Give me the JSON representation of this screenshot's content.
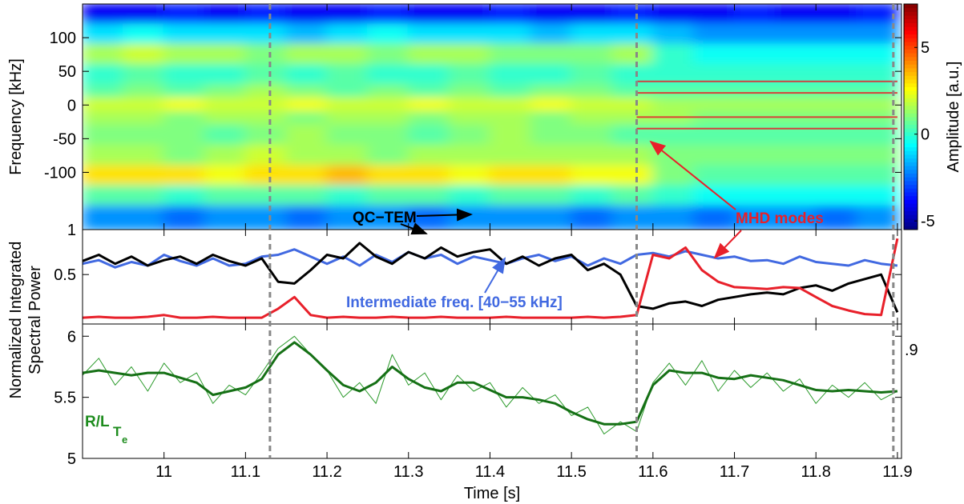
{
  "chart_data": [
    {
      "type": "heatmap",
      "ylabel": "Frequency [kHz]",
      "colorbar_label": "Amplitude [a.u.]",
      "xlim": [
        10.9,
        11.905
      ],
      "ylim": [
        -185,
        150
      ],
      "yticks": [
        -100,
        -50,
        0,
        50,
        100
      ],
      "zlim": [
        -5.5,
        7.5
      ],
      "zticks": [
        -5,
        0,
        5
      ],
      "xbins": [
        10.9,
        10.95,
        11.0,
        11.05,
        11.1,
        11.15,
        11.2,
        11.25,
        11.3,
        11.35,
        11.4,
        11.45,
        11.5,
        11.55,
        11.6,
        11.65,
        11.7,
        11.75,
        11.8,
        11.85,
        11.9
      ],
      "ybins": [
        150,
        120,
        90,
        60,
        30,
        10,
        -10,
        -30,
        -60,
        -90,
        -120,
        -150,
        -185
      ],
      "z": [
        [
          -4,
          -4,
          -3.5,
          -4,
          -3.5,
          -4,
          -4,
          -3.5,
          -4,
          -4,
          -3.5,
          -4,
          -4,
          -3.5,
          -4,
          -4,
          -3.5,
          -4,
          -4,
          -3.5
        ],
        [
          -1,
          -0.5,
          -1,
          -1,
          -1,
          -1.5,
          -1,
          -0.5,
          -1,
          -1,
          -1,
          -1.5,
          -1,
          -1,
          -1.5,
          -2,
          -2,
          -2,
          -2,
          -2
        ],
        [
          1.5,
          2,
          1.5,
          1.5,
          1,
          1.5,
          1.5,
          1,
          1.5,
          1.5,
          1,
          1,
          1,
          1.5,
          0,
          -0.5,
          -0.5,
          -0.5,
          -0.5,
          -0.5
        ],
        [
          0,
          0.5,
          0,
          0,
          0.5,
          0,
          0.5,
          0,
          0,
          0.5,
          0,
          0,
          0.5,
          0,
          0,
          0,
          0,
          0,
          0,
          0
        ],
        [
          0.5,
          1,
          0.5,
          1,
          1.5,
          1,
          0.5,
          1,
          0.5,
          1,
          0.5,
          1,
          1,
          0.5,
          0.5,
          0.5,
          0.5,
          0.5,
          0.5,
          0.5
        ],
        [
          2,
          2,
          2.5,
          2,
          2,
          2.5,
          2,
          2,
          2.5,
          2,
          2,
          2.5,
          2,
          2,
          1.5,
          1.5,
          1.5,
          1.5,
          1.5,
          1.5
        ],
        [
          1.5,
          1.5,
          1,
          1.5,
          1.5,
          1,
          1.5,
          1.5,
          1,
          1.5,
          1.5,
          1,
          1.5,
          1.5,
          1.5,
          1,
          1,
          1,
          1,
          1
        ],
        [
          1,
          1,
          1,
          0.5,
          1,
          1.5,
          1,
          1,
          0.5,
          1,
          1.5,
          1,
          1,
          0.5,
          0.5,
          0.5,
          0.5,
          0.5,
          0.5,
          0.5
        ],
        [
          1.5,
          1.5,
          1,
          1.5,
          2,
          1.5,
          1.5,
          1,
          1.5,
          1.5,
          1.5,
          1.5,
          1.5,
          1.5,
          1,
          1,
          1,
          1,
          1,
          1
        ],
        [
          3,
          3,
          3,
          2.5,
          3,
          3,
          3.5,
          3,
          3,
          2.5,
          3,
          3,
          2.5,
          2.5,
          1,
          0.5,
          0.5,
          0.5,
          0.5,
          0.5
        ],
        [
          0.5,
          0.5,
          0,
          0.5,
          0.5,
          0.5,
          0,
          0.5,
          0.5,
          0,
          0.5,
          0.5,
          0,
          0.5,
          0,
          -0.5,
          -0.5,
          -0.5,
          -0.5,
          -0.5
        ],
        [
          -2,
          -2,
          -2.5,
          -2,
          -2,
          -2.5,
          -2,
          -2,
          -2.5,
          -2,
          -2,
          -2,
          -2.5,
          -2,
          -2,
          -2.5,
          -2,
          -2,
          -2.5,
          -2
        ]
      ],
      "mode_freqs": [
        35,
        18,
        -18,
        -35
      ],
      "mode_start": 11.58,
      "mode_end": 11.9,
      "mode_color": "#e8202a"
    },
    {
      "type": "line",
      "ylabel": [
        "Normalized Integrated",
        "Spectral Power"
      ],
      "xlim": [
        10.9,
        11.905
      ],
      "ylim": [
        -0.05,
        1
      ],
      "yticks": [
        0.5,
        1
      ],
      "x": [
        10.9,
        10.92,
        10.94,
        10.96,
        10.98,
        11.0,
        11.02,
        11.04,
        11.06,
        11.08,
        11.1,
        11.12,
        11.14,
        11.16,
        11.18,
        11.2,
        11.22,
        11.24,
        11.26,
        11.28,
        11.3,
        11.32,
        11.34,
        11.36,
        11.38,
        11.4,
        11.42,
        11.44,
        11.46,
        11.48,
        11.5,
        11.52,
        11.54,
        11.56,
        11.58,
        11.6,
        11.62,
        11.64,
        11.66,
        11.68,
        11.7,
        11.72,
        11.74,
        11.76,
        11.78,
        11.8,
        11.82,
        11.84,
        11.86,
        11.88,
        11.9
      ],
      "series": [
        {
          "color": "#4169e1",
          "values": [
            0.62,
            0.66,
            0.58,
            0.64,
            0.6,
            0.72,
            0.65,
            0.6,
            0.68,
            0.6,
            0.62,
            0.7,
            0.72,
            0.78,
            0.7,
            0.62,
            0.7,
            0.6,
            0.72,
            0.64,
            0.75,
            0.68,
            0.72,
            0.62,
            0.7,
            0.66,
            0.62,
            0.68,
            0.72,
            0.65,
            0.7,
            0.6,
            0.68,
            0.62,
            0.72,
            0.74,
            0.7,
            0.76,
            0.72,
            0.68,
            0.7,
            0.65,
            0.66,
            0.62,
            0.7,
            0.64,
            0.62,
            0.6,
            0.66,
            0.62,
            0.6
          ]
        },
        {
          "color": "#000000",
          "values": [
            0.65,
            0.72,
            0.62,
            0.7,
            0.6,
            0.66,
            0.7,
            0.62,
            0.72,
            0.65,
            0.6,
            0.68,
            0.42,
            0.4,
            0.55,
            0.72,
            0.68,
            0.85,
            0.7,
            0.62,
            0.75,
            0.68,
            0.8,
            0.7,
            0.75,
            0.78,
            0.62,
            0.7,
            0.6,
            0.68,
            0.72,
            0.55,
            0.62,
            0.5,
            0.15,
            0.12,
            0.18,
            0.2,
            0.15,
            0.22,
            0.25,
            0.28,
            0.3,
            0.28,
            0.35,
            0.38,
            0.32,
            0.4,
            0.45,
            0.5,
            0.08
          ]
        },
        {
          "color": "#e8202a",
          "values": [
            0.02,
            0.03,
            0.02,
            0.02,
            0.03,
            0.05,
            0.02,
            0.02,
            0.03,
            0.02,
            0.02,
            0.02,
            0.12,
            0.25,
            0.05,
            0.02,
            0.03,
            0.02,
            0.02,
            0.03,
            0.02,
            0.02,
            0.03,
            0.02,
            0.02,
            0.02,
            0.03,
            0.02,
            0.02,
            0.02,
            0.02,
            0.03,
            0.02,
            0.03,
            0.05,
            0.72,
            0.68,
            0.8,
            0.55,
            0.42,
            0.36,
            0.35,
            0.34,
            0.36,
            0.35,
            0.25,
            0.15,
            0.1,
            0.06,
            0.05,
            0.9
          ]
        }
      ],
      "annotations": [
        {
          "text": "QC−TEM",
          "color": "#000000"
        },
        {
          "text": "MHD modes",
          "color": "#e8202a"
        },
        {
          "text": "Intermediate freq. [40−55 kHz]",
          "color": "#4169e1"
        }
      ]
    },
    {
      "type": "line",
      "xlabel": "Time [s]",
      "right_label": ".9",
      "label": {
        "main": "R/L",
        "sub": "T",
        "subsub": "e",
        "color": "#1e8c1e"
      },
      "xlim": [
        10.9,
        11.905
      ],
      "ylim": [
        5,
        6.1
      ],
      "yticks": [
        5,
        5.5,
        6
      ],
      "xticks": [
        11,
        11.1,
        11.2,
        11.3,
        11.4,
        11.5,
        11.6,
        11.7,
        11.8,
        11.9
      ],
      "vlines": [
        11.13,
        11.58,
        11.895
      ],
      "x": [
        10.9,
        10.92,
        10.94,
        10.96,
        10.98,
        11.0,
        11.02,
        11.04,
        11.06,
        11.08,
        11.1,
        11.12,
        11.14,
        11.16,
        11.18,
        11.2,
        11.22,
        11.24,
        11.26,
        11.28,
        11.3,
        11.32,
        11.34,
        11.36,
        11.38,
        11.4,
        11.42,
        11.44,
        11.46,
        11.48,
        11.5,
        11.52,
        11.54,
        11.56,
        11.58,
        11.6,
        11.62,
        11.64,
        11.66,
        11.68,
        11.7,
        11.72,
        11.74,
        11.76,
        11.78,
        11.8,
        11.82,
        11.84,
        11.86,
        11.88,
        11.9
      ],
      "series": [
        {
          "color": "#2a9a2a",
          "values": [
            5.68,
            5.82,
            5.6,
            5.75,
            5.55,
            5.78,
            5.62,
            5.7,
            5.45,
            5.6,
            5.52,
            5.7,
            5.9,
            6.0,
            5.85,
            5.72,
            5.5,
            5.62,
            5.45,
            5.85,
            5.6,
            5.7,
            5.48,
            5.68,
            5.55,
            5.62,
            5.42,
            5.58,
            5.45,
            5.52,
            5.35,
            5.42,
            5.2,
            5.3,
            5.22,
            5.62,
            5.78,
            5.6,
            5.8,
            5.55,
            5.72,
            5.58,
            5.7,
            5.55,
            5.65,
            5.45,
            5.6,
            5.5,
            5.62,
            5.48,
            5.55
          ]
        },
        {
          "color": "#157015",
          "values": [
            5.7,
            5.72,
            5.7,
            5.68,
            5.7,
            5.7,
            5.66,
            5.62,
            5.52,
            5.55,
            5.58,
            5.65,
            5.85,
            5.95,
            5.85,
            5.72,
            5.6,
            5.55,
            5.62,
            5.75,
            5.65,
            5.58,
            5.55,
            5.62,
            5.62,
            5.56,
            5.5,
            5.5,
            5.48,
            5.45,
            5.38,
            5.32,
            5.28,
            5.28,
            5.3,
            5.6,
            5.72,
            5.7,
            5.7,
            5.66,
            5.65,
            5.68,
            5.66,
            5.64,
            5.6,
            5.56,
            5.55,
            5.56,
            5.55,
            5.54,
            5.55
          ]
        }
      ]
    }
  ]
}
